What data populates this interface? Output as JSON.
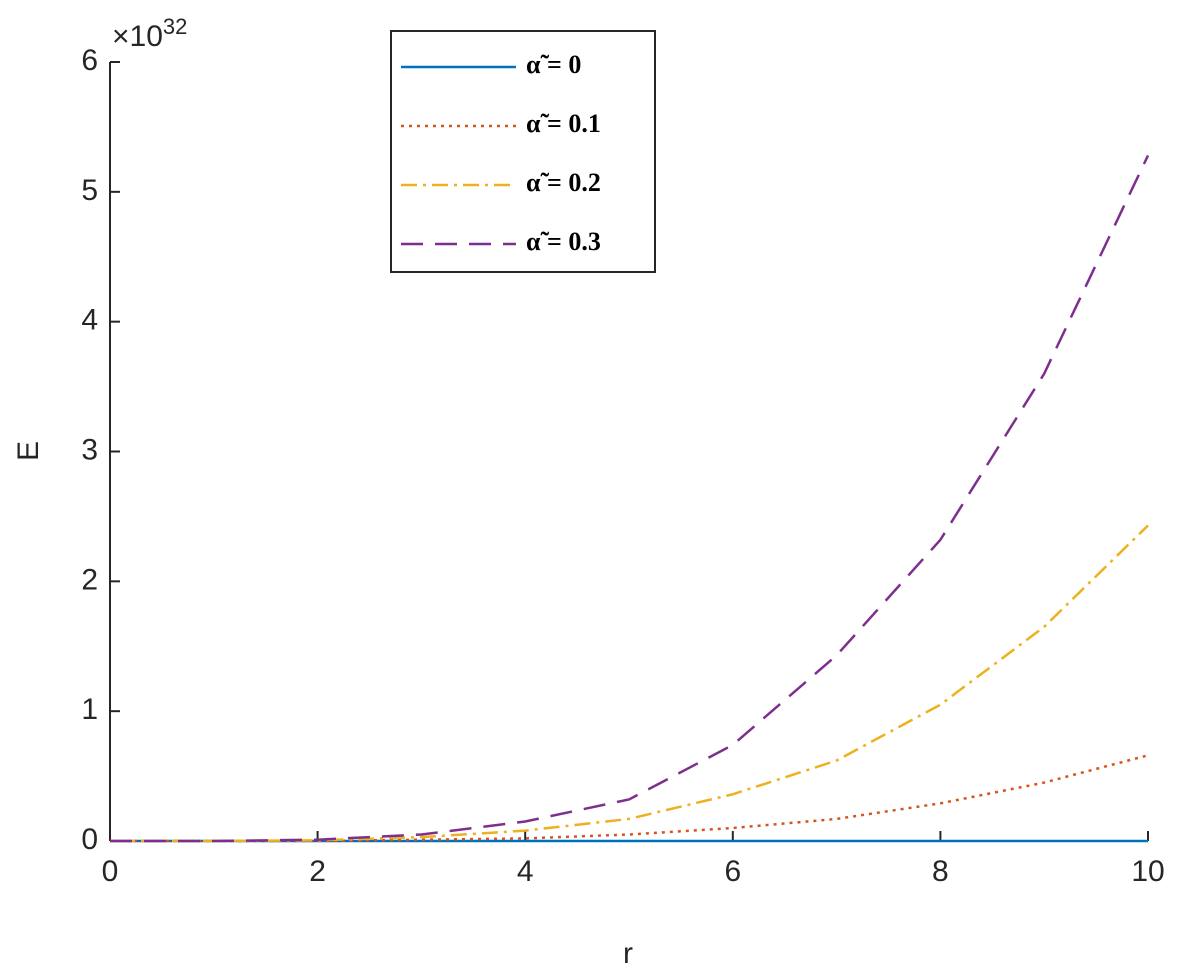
{
  "chart_data": {
    "type": "line",
    "x_label": "r",
    "y_label": "E",
    "y_scale_base": "×10",
    "y_scale_exponent": "32",
    "x": [
      0,
      1,
      2,
      3,
      4,
      5,
      6,
      7,
      8,
      9,
      10
    ],
    "series": [
      {
        "name": "α̃ = 0",
        "color": "#0072BD",
        "dash": "solid",
        "values": [
          0,
          0,
          0,
          0,
          0,
          0,
          0,
          0,
          0,
          0,
          0
        ]
      },
      {
        "name": "α̃ = 0.1",
        "color": "#D95319",
        "dash": "dotted",
        "values": [
          0,
          0,
          0,
          0.01,
          0.02,
          0.05,
          0.1,
          0.17,
          0.29,
          0.45,
          0.66
        ]
      },
      {
        "name": "α̃ = 0.2",
        "color": "#EDB120",
        "dash": "dashdot",
        "values": [
          0,
          0,
          0.005,
          0.03,
          0.08,
          0.17,
          0.36,
          0.62,
          1.05,
          1.65,
          2.43
        ]
      },
      {
        "name": "α̃ = 0.3",
        "color": "#7E2F8E",
        "dash": "dashed",
        "values": [
          0,
          0,
          0.01,
          0.05,
          0.15,
          0.32,
          0.74,
          1.43,
          2.32,
          3.6,
          5.28
        ]
      }
    ],
    "xlim": [
      0,
      10
    ],
    "xticks": [
      0,
      2,
      4,
      6,
      8,
      10
    ],
    "ylim": [
      0,
      6
    ],
    "yticks": [
      0,
      1,
      2,
      3,
      4,
      5,
      6
    ],
    "grid": false,
    "legend": "top-center"
  }
}
